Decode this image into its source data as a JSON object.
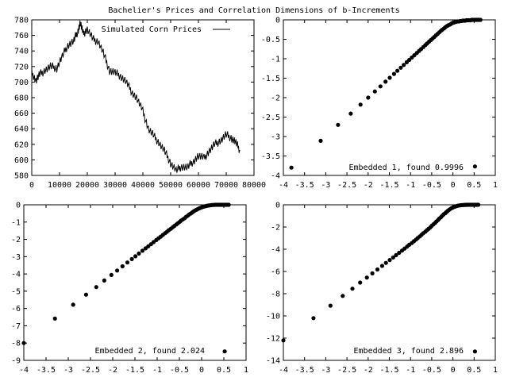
{
  "figure_title": "Bachelier's Prices and Correlation Dimensions of b-Increments",
  "chart_data": [
    {
      "type": "line",
      "title": "",
      "legend": "Simulated Corn Prices",
      "legend_position": "top-right",
      "xlim": [
        0,
        80000
      ],
      "ylim": [
        580,
        780
      ],
      "xticks": [
        0,
        10000,
        20000,
        30000,
        40000,
        50000,
        60000,
        70000,
        80000
      ],
      "yticks": [
        580,
        600,
        620,
        640,
        660,
        680,
        700,
        720,
        740,
        760,
        780
      ],
      "x": [
        0,
        1500,
        3000,
        5000,
        7000,
        9000,
        11000,
        13000,
        15000,
        16500,
        17500,
        18500,
        20000,
        22000,
        24000,
        26000,
        28000,
        30000,
        32000,
        34000,
        36000,
        38000,
        40000,
        42000,
        44000,
        46000,
        48000,
        50000,
        52000,
        54000,
        56000,
        58000,
        60000,
        62000,
        64000,
        66000,
        68000,
        70000,
        72000,
        73500,
        75000
      ],
      "y": [
        712,
        702,
        710,
        716,
        720,
        718,
        733,
        748,
        752,
        765,
        776,
        762,
        768,
        755,
        752,
        735,
        715,
        712,
        708,
        700,
        688,
        678,
        662,
        640,
        630,
        621,
        610,
        596,
        586,
        592,
        590,
        598,
        605,
        602,
        612,
        620,
        625,
        632,
        628,
        622,
        612
      ]
    },
    {
      "type": "scatter",
      "legend": "Embedded 1, found 0.9996",
      "xlim": [
        -4,
        1
      ],
      "ylim": [
        -4,
        0
      ],
      "xticks": [
        -4,
        -3.5,
        -3,
        -2.5,
        -2,
        -1.5,
        -1,
        -0.5,
        0,
        0.5,
        1
      ],
      "yticks": [
        -4,
        -3.5,
        -3,
        -2.5,
        -2,
        -1.5,
        -1,
        -0.5,
        0
      ],
      "ytick_labels": [
        "-4",
        "-3.5",
        "-3",
        "-2.5",
        "-2",
        "-1.5",
        "-1",
        "-0.5",
        "0"
      ],
      "x": [
        -3.81,
        -3.12,
        -2.71,
        -2.41,
        -2.18,
        -2.0,
        -1.84,
        -1.71,
        -1.59,
        -1.49,
        -1.39,
        -1.31,
        -1.23,
        -1.16,
        -1.09,
        -1.03,
        -0.97,
        -0.91,
        -0.85,
        -0.8,
        -0.75,
        -0.7,
        -0.65,
        -0.61,
        -0.56,
        -0.52,
        -0.48,
        -0.44,
        -0.4,
        -0.36,
        -0.32,
        -0.28,
        -0.25,
        -0.21,
        -0.18,
        -0.14,
        -0.11,
        -0.07,
        -0.04,
        -0.01,
        0.02,
        0.05,
        0.08,
        0.11,
        0.14,
        0.17,
        0.2,
        0.23,
        0.26,
        0.29,
        0.32,
        0.35,
        0.38,
        0.41,
        0.44,
        0.47,
        0.5,
        0.53,
        0.56,
        0.59,
        0.62,
        0.65
      ],
      "y": [
        -3.8,
        -3.11,
        -2.7,
        -2.41,
        -2.18,
        -2.0,
        -1.84,
        -1.71,
        -1.59,
        -1.49,
        -1.39,
        -1.31,
        -1.23,
        -1.16,
        -1.09,
        -1.03,
        -0.97,
        -0.91,
        -0.85,
        -0.8,
        -0.75,
        -0.7,
        -0.65,
        -0.61,
        -0.56,
        -0.52,
        -0.48,
        -0.44,
        -0.4,
        -0.36,
        -0.32,
        -0.28,
        -0.25,
        -0.22,
        -0.19,
        -0.16,
        -0.14,
        -0.12,
        -0.1,
        -0.08,
        -0.07,
        -0.06,
        -0.05,
        -0.04,
        -0.04,
        -0.03,
        -0.03,
        -0.02,
        -0.02,
        -0.02,
        -0.01,
        -0.01,
        -0.01,
        -0.01,
        0,
        0,
        0,
        0,
        0,
        0,
        0,
        0
      ],
      "key_marker": [
        0.52,
        -3.77
      ]
    },
    {
      "type": "scatter",
      "legend": "Embedded 2, found 2.024",
      "xlim": [
        -4,
        1
      ],
      "ylim": [
        -9,
        0
      ],
      "xticks": [
        -4,
        -3.5,
        -3,
        -2.5,
        -2,
        -1.5,
        -1,
        -0.5,
        0,
        0.5,
        1
      ],
      "yticks": [
        -9,
        -8,
        -7,
        -6,
        -5,
        -4,
        -3,
        -2,
        -1,
        0
      ],
      "ytick_labels": [
        "-9",
        "-8",
        "-7",
        "-6",
        "-5",
        "-4",
        "-3",
        "-2",
        "-1",
        "0"
      ],
      "x": [
        -4.0,
        -3.3,
        -2.89,
        -2.6,
        -2.37,
        -2.19,
        -2.03,
        -1.9,
        -1.78,
        -1.67,
        -1.57,
        -1.49,
        -1.41,
        -1.33,
        -1.26,
        -1.2,
        -1.14,
        -1.08,
        -1.02,
        -0.97,
        -0.92,
        -0.87,
        -0.82,
        -0.78,
        -0.74,
        -0.69,
        -0.65,
        -0.61,
        -0.57,
        -0.53,
        -0.49,
        -0.46,
        -0.42,
        -0.38,
        -0.35,
        -0.31,
        -0.28,
        -0.24,
        -0.21,
        -0.18,
        -0.15,
        -0.11,
        -0.08,
        -0.05,
        -0.02,
        0.01,
        0.04,
        0.07,
        0.1,
        0.13,
        0.16,
        0.19,
        0.22,
        0.25,
        0.28,
        0.31,
        0.34,
        0.37,
        0.4,
        0.43,
        0.46,
        0.49,
        0.52,
        0.55,
        0.58,
        0.61
      ],
      "y": [
        -8.0,
        -6.58,
        -5.78,
        -5.2,
        -4.76,
        -4.38,
        -4.06,
        -3.8,
        -3.56,
        -3.34,
        -3.14,
        -2.98,
        -2.82,
        -2.66,
        -2.52,
        -2.4,
        -2.28,
        -2.16,
        -2.04,
        -1.94,
        -1.84,
        -1.74,
        -1.64,
        -1.56,
        -1.47,
        -1.38,
        -1.3,
        -1.22,
        -1.14,
        -1.06,
        -0.98,
        -0.91,
        -0.84,
        -0.77,
        -0.7,
        -0.63,
        -0.56,
        -0.5,
        -0.44,
        -0.38,
        -0.33,
        -0.28,
        -0.24,
        -0.2,
        -0.17,
        -0.14,
        -0.11,
        -0.09,
        -0.07,
        -0.05,
        -0.04,
        -0.03,
        -0.02,
        -0.01,
        -0.01,
        0,
        0,
        0,
        0,
        0,
        0,
        0,
        0,
        0,
        0,
        0
      ],
      "key_marker": [
        0.52,
        -8.48
      ]
    },
    {
      "type": "scatter",
      "legend": "Embedded 3, found 2.896",
      "xlim": [
        -4,
        1
      ],
      "ylim": [
        -14,
        0
      ],
      "xticks": [
        -4,
        -3.5,
        -3,
        -2.5,
        -2,
        -1.5,
        -1,
        -0.5,
        0,
        0.5,
        1
      ],
      "yticks": [
        -14,
        -12,
        -10,
        -8,
        -6,
        -4,
        -2,
        0
      ],
      "ytick_labels": [
        "-14",
        "-12",
        "-10",
        "-8",
        "-6",
        "-4",
        "-2",
        "0"
      ],
      "x": [
        -4.0,
        -3.29,
        -2.89,
        -2.6,
        -2.37,
        -2.19,
        -2.03,
        -1.9,
        -1.78,
        -1.67,
        -1.58,
        -1.49,
        -1.41,
        -1.34,
        -1.27,
        -1.2,
        -1.14,
        -1.08,
        -1.03,
        -0.97,
        -0.92,
        -0.87,
        -0.83,
        -0.78,
        -0.74,
        -0.7,
        -0.65,
        -0.61,
        -0.57,
        -0.53,
        -0.5,
        -0.46,
        -0.42,
        -0.39,
        -0.35,
        -0.32,
        -0.28,
        -0.25,
        -0.22,
        -0.18,
        -0.15,
        -0.12,
        -0.09,
        -0.06,
        -0.03,
        0.0,
        0.03,
        0.06,
        0.09,
        0.12,
        0.15,
        0.18,
        0.21,
        0.24,
        0.27,
        0.3,
        0.33,
        0.36,
        0.39,
        0.42,
        0.45,
        0.48,
        0.51,
        0.54,
        0.57,
        0.6
      ],
      "y": [
        -12.2,
        -10.2,
        -9.08,
        -8.2,
        -7.55,
        -7.0,
        -6.55,
        -6.17,
        -5.82,
        -5.5,
        -5.23,
        -4.97,
        -4.74,
        -4.53,
        -4.32,
        -4.12,
        -3.94,
        -3.76,
        -3.6,
        -3.44,
        -3.28,
        -3.13,
        -2.99,
        -2.84,
        -2.7,
        -2.56,
        -2.42,
        -2.28,
        -2.15,
        -2.02,
        -1.89,
        -1.76,
        -1.63,
        -1.5,
        -1.37,
        -1.24,
        -1.11,
        -0.98,
        -0.86,
        -0.75,
        -0.64,
        -0.54,
        -0.45,
        -0.37,
        -0.3,
        -0.24,
        -0.19,
        -0.15,
        -0.11,
        -0.08,
        -0.06,
        -0.04,
        -0.03,
        -0.02,
        -0.01,
        -0.01,
        0,
        0,
        0,
        0,
        0,
        0,
        0,
        0,
        0,
        0
      ],
      "key_marker": [
        0.52,
        -13.2
      ]
    }
  ]
}
